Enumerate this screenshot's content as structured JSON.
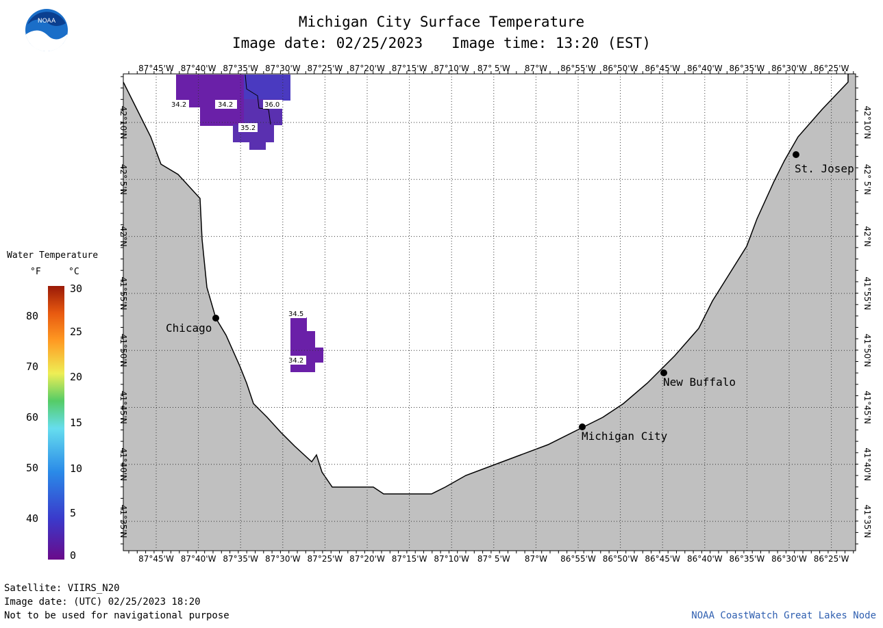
{
  "header": {
    "title": "Michigan City Surface Temperature",
    "image_date": "Image date: 02/25/2023",
    "image_time": "Image time: 13:20 (EST)"
  },
  "logo": {
    "text": "NOAA"
  },
  "legend": {
    "title": "Water Temperature",
    "unit_f": "°F",
    "unit_c": "°C",
    "f_ticks": [
      "80",
      "70",
      "60",
      "50",
      "40"
    ],
    "c_ticks": [
      "30",
      "25",
      "20",
      "15",
      "10",
      "5",
      "0"
    ]
  },
  "map": {
    "lon_labels": [
      "87°45'W",
      "87°40'W",
      "87°35'W",
      "87°30'W",
      "87°25'W",
      "87°20'W",
      "87°15'W",
      "87°10'W",
      "87° 5'W",
      "87°W",
      "86°55'W",
      "86°50'W",
      "86°45'W",
      "86°40'W",
      "86°35'W",
      "86°30'W",
      "86°25'W"
    ],
    "lat_labels": [
      "42°10'N",
      "42° 5'N",
      "42°N",
      "41°55'N",
      "41°50'N",
      "41°45'N",
      "41°40'N",
      "41°35'N"
    ],
    "cities": [
      {
        "name": "Chicago"
      },
      {
        "name": "St. Josep"
      },
      {
        "name": "New Buffalo"
      },
      {
        "name": "Michigan City"
      }
    ],
    "temp_labels": [
      "34.2",
      "34.2",
      "36.0",
      "35.2",
      "34.5",
      "34.2"
    ],
    "colors": {
      "land": "#c0c0c0",
      "water": "#ffffff",
      "pixel_dark": "#6a20a8",
      "pixel_mid": "#5a30b0",
      "pixel_blue": "#4a3ac0"
    }
  },
  "footer": {
    "satellite": "Satellite: VIIRS_N20",
    "utc_date": "Image date: (UTC) 02/25/2023  18:20",
    "disclaimer": "Not to be used for navigational purpose",
    "credit": "NOAA CoastWatch Great Lakes Node"
  }
}
